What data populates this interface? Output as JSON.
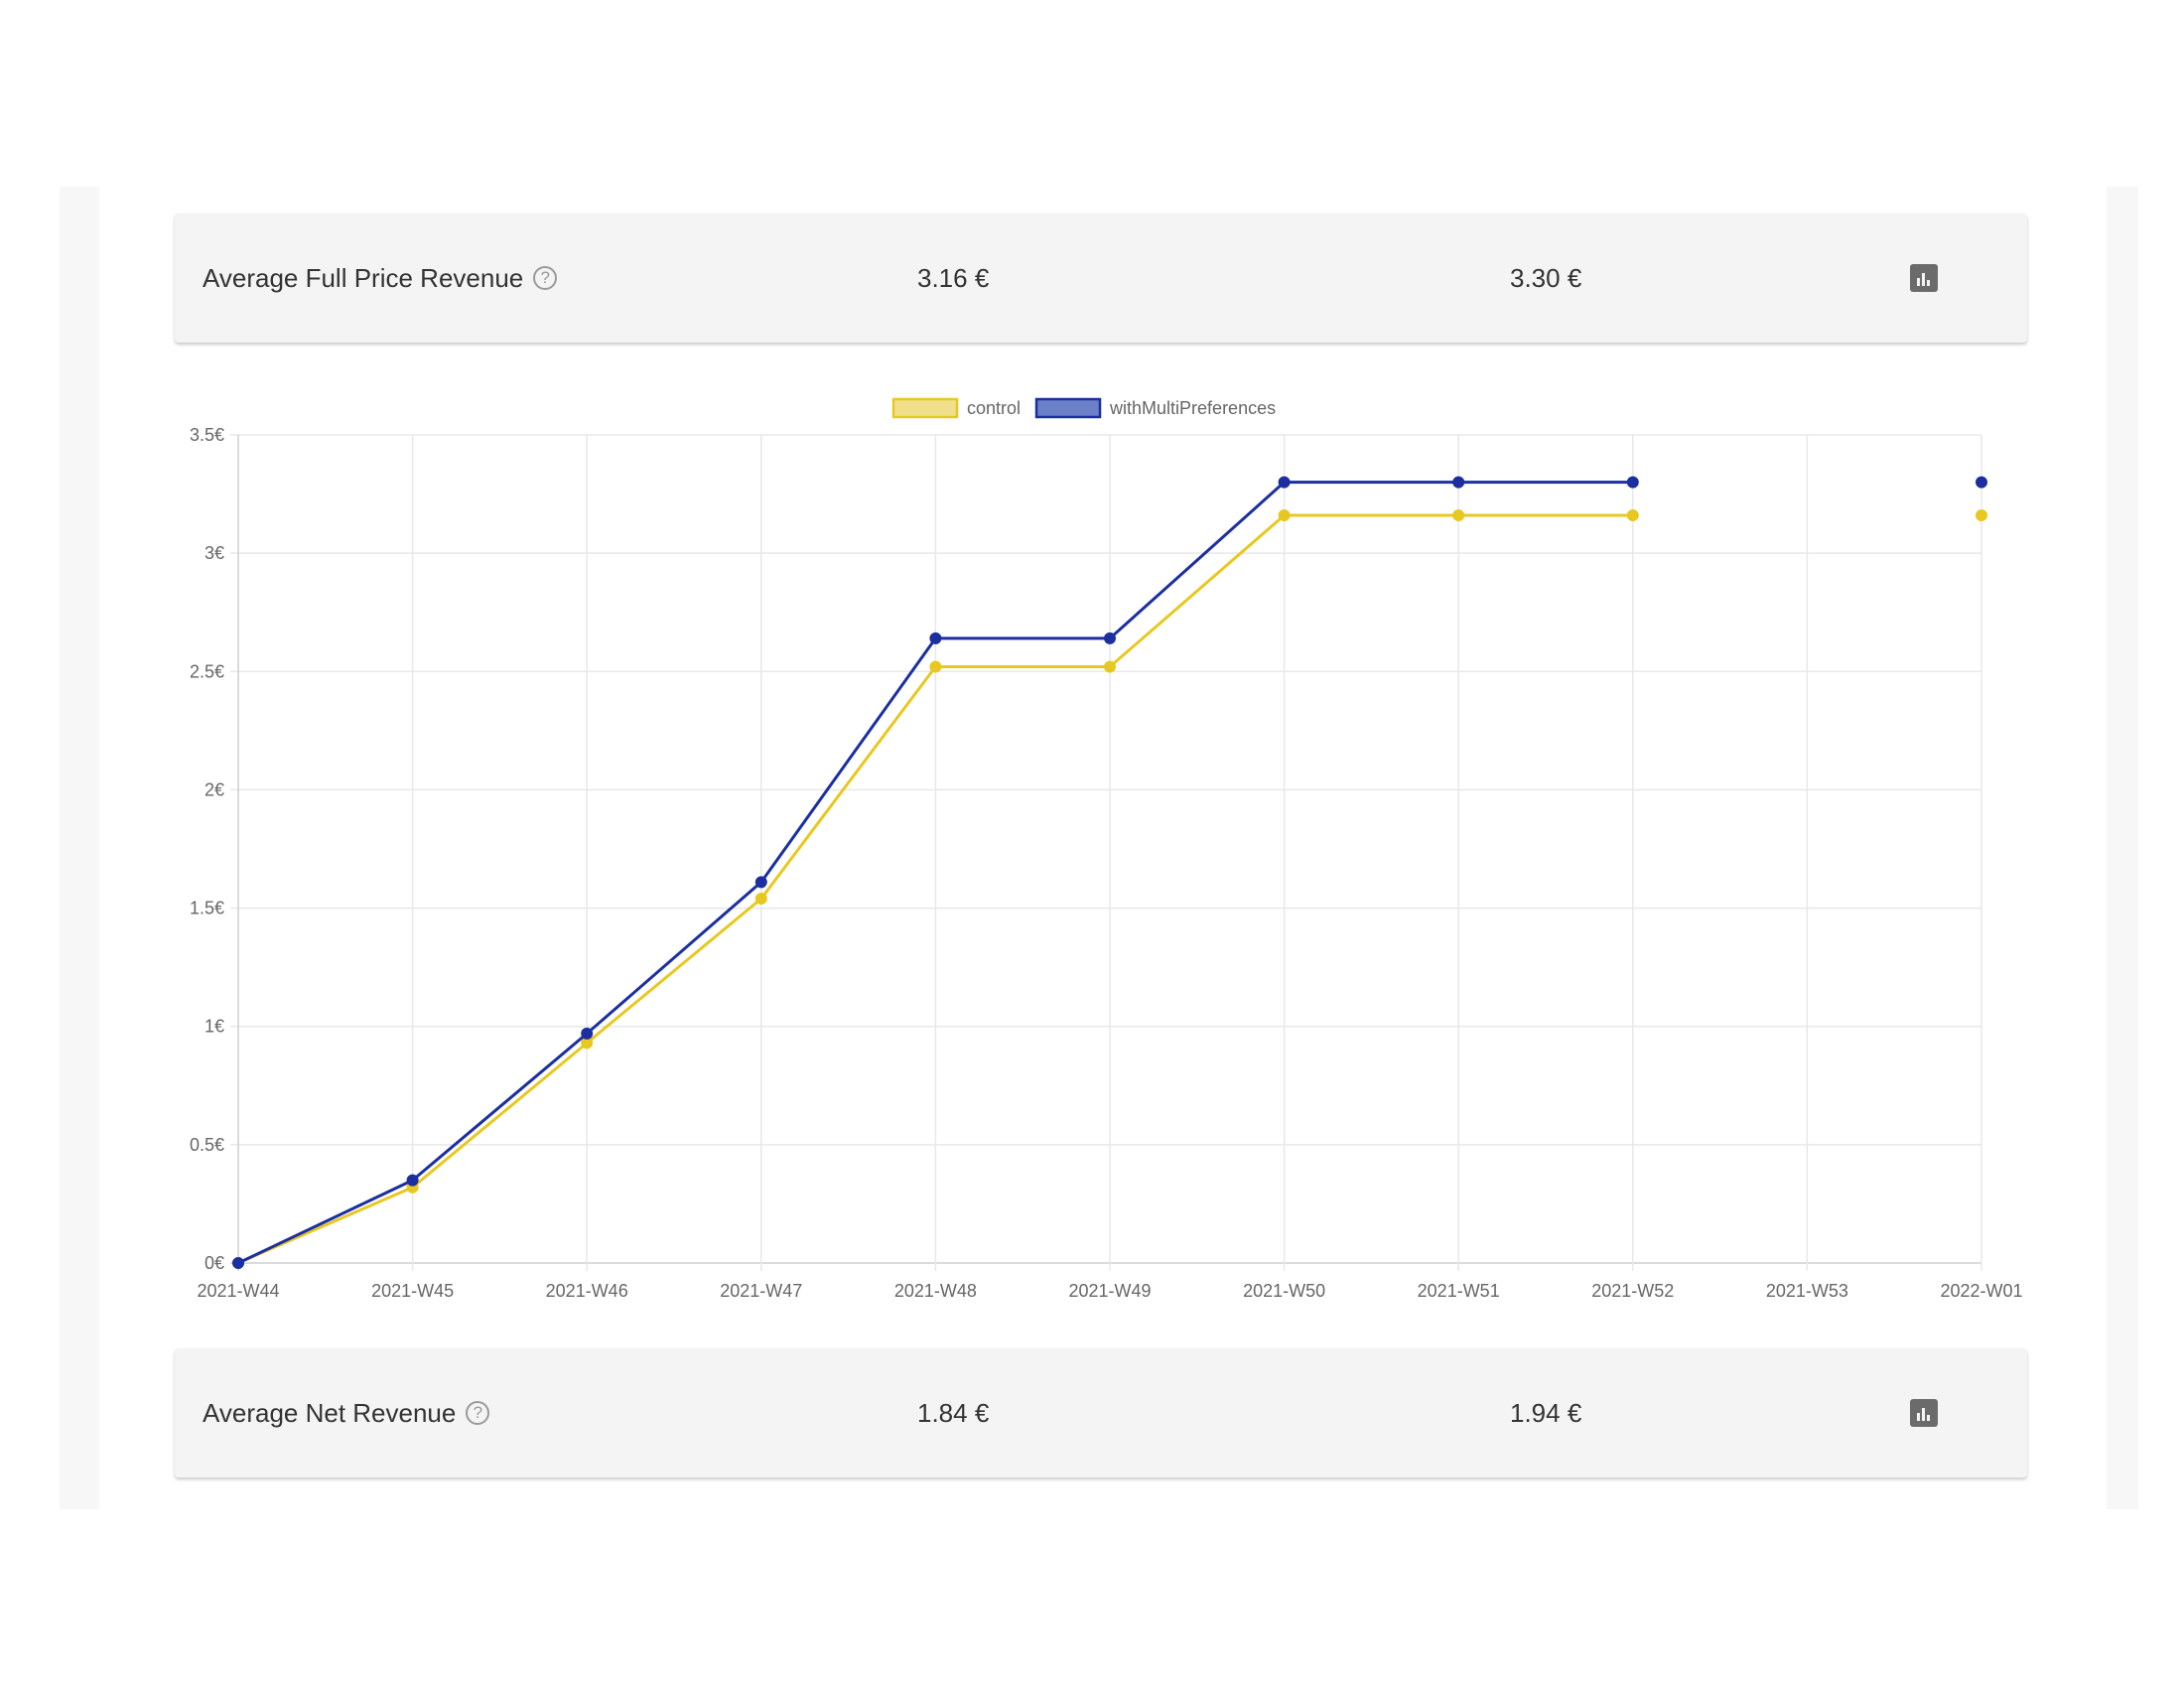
{
  "metrics": {
    "top": {
      "title": "Average Full Price Revenue",
      "help_icon": "?",
      "control_value": "3.16 €",
      "variant_value": "3.30 €",
      "icon": "bar-chart-icon"
    },
    "bottom": {
      "title": "Average Net Revenue",
      "help_icon": "?",
      "control_value": "1.84 €",
      "variant_value": "1.94 €",
      "icon": "bar-chart-icon"
    }
  },
  "chart_data": {
    "type": "line",
    "x": [
      "2021-W44",
      "2021-W45",
      "2021-W46",
      "2021-W47",
      "2021-W48",
      "2021-W49",
      "2021-W50",
      "2021-W51",
      "2021-W52",
      "2021-W53",
      "2022-W01"
    ],
    "y_ticks": [
      "0€",
      "0.5€",
      "1€",
      "1.5€",
      "2€",
      "2.5€",
      "3€",
      "3.5€"
    ],
    "ylim": [
      0,
      3.5
    ],
    "grid": true,
    "legend_position": "top-center",
    "series": [
      {
        "name": "control",
        "color": "#e8c820",
        "fill": "#f0e08c",
        "values": [
          0,
          0.32,
          0.93,
          1.54,
          2.52,
          2.52,
          3.16,
          3.16,
          3.16,
          null,
          3.16
        ]
      },
      {
        "name": "withMultiPreferences",
        "color": "#1b2fa0",
        "fill": "#6b80c6",
        "values": [
          0,
          0.35,
          0.97,
          1.61,
          2.64,
          2.64,
          3.3,
          3.3,
          3.3,
          null,
          3.3
        ]
      }
    ]
  }
}
